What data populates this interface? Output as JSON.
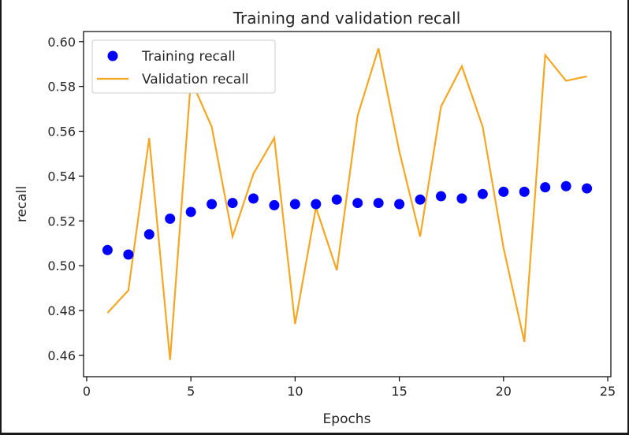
{
  "chart_data": {
    "type": "line",
    "title": "Training and validation recall",
    "xlabel": "Epochs",
    "ylabel": "recall",
    "xlim": [
      -0.15,
      25.15
    ],
    "ylim": [
      0.4505,
      0.6045
    ],
    "xticks": [
      0,
      5,
      10,
      15,
      20,
      25
    ],
    "xtick_labels": [
      "0",
      "5",
      "10",
      "15",
      "20",
      "25"
    ],
    "yticks": [
      0.46,
      0.48,
      0.5,
      0.52,
      0.54,
      0.56,
      0.58,
      0.6
    ],
    "ytick_labels": [
      "0.46",
      "0.48",
      "0.50",
      "0.52",
      "0.54",
      "0.56",
      "0.58",
      "0.60"
    ],
    "grid": false,
    "legend_position": "top-left",
    "x": [
      1,
      2,
      3,
      4,
      5,
      6,
      7,
      8,
      9,
      10,
      11,
      12,
      13,
      14,
      15,
      16,
      17,
      18,
      19,
      20,
      21,
      22,
      23,
      24
    ],
    "series": [
      {
        "name": "Training recall",
        "style": "markers",
        "color": "#0000ff",
        "values": [
          0.507,
          0.505,
          0.514,
          0.521,
          0.524,
          0.5275,
          0.528,
          0.53,
          0.527,
          0.5275,
          0.5275,
          0.5295,
          0.528,
          0.528,
          0.5275,
          0.5295,
          0.531,
          0.53,
          0.532,
          0.533,
          0.533,
          0.535,
          0.5355,
          0.5345
        ]
      },
      {
        "name": "Validation recall",
        "style": "line",
        "color": "#f5a623",
        "values": [
          0.479,
          0.489,
          0.557,
          0.458,
          0.583,
          0.562,
          0.513,
          0.541,
          0.557,
          0.474,
          0.526,
          0.498,
          0.567,
          0.597,
          0.551,
          0.513,
          0.571,
          0.589,
          0.562,
          0.508,
          0.466,
          0.594,
          0.5825,
          0.5845
        ]
      }
    ]
  }
}
